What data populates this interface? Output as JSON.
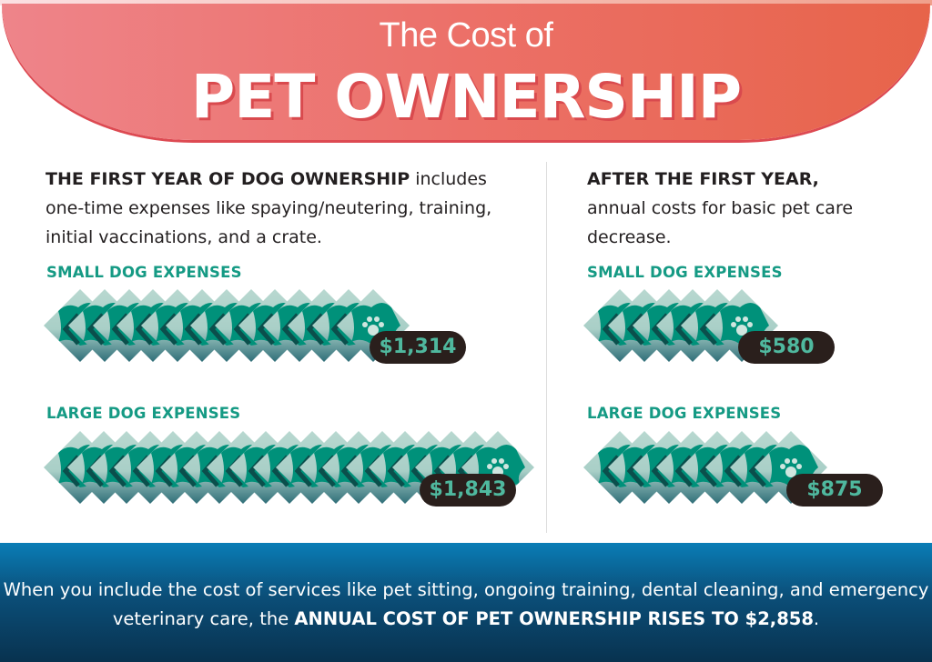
{
  "header": {
    "title_line1": "The Cost of",
    "title_line2": "PET OWNERSHIP"
  },
  "first_year": {
    "intro_bold": "THE FIRST YEAR OF DOG OWNERSHIP",
    "intro_rest": " includes one-time expenses like spaying/neutering, training, initial vaccinations, and a crate.",
    "small": {
      "label": "SMALL DOG EXPENSES",
      "amount": "$1,314",
      "bill_count": 13
    },
    "large": {
      "label": "LARGE DOG EXPENSES",
      "amount": "$1,843",
      "bill_count": 19
    }
  },
  "after_first_year": {
    "intro_bold": "AFTER THE FIRST YEAR,",
    "intro_rest": " annual costs for basic pet care decrease.",
    "small": {
      "label": "SMALL DOG EXPENSES",
      "amount": "$580",
      "bill_count": 6
    },
    "large": {
      "label": "LARGE DOG EXPENSES",
      "amount": "$875",
      "bill_count": 8
    }
  },
  "footer": {
    "text": "When you include the cost of services like pet sitting, ongoing training, dental cleaning, and emergency veterinary care, the ",
    "bold": "ANNUAL COST OF PET OWNERSHIP RISES TO $2,858",
    "end": "."
  },
  "colors": {
    "banner_start": "#ee848a",
    "banner_end": "#e7644a",
    "accent_green": "#159a84",
    "bill_green": "#00917a",
    "pill_bg": "#2a1f1c",
    "footer_blue": "#0b4e78"
  },
  "icons": {
    "bill": "paw-print-dollar-bill-icon"
  }
}
